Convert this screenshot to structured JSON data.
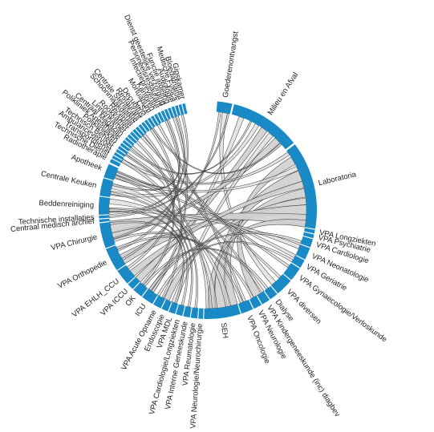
{
  "chart_data": {
    "type": "chord",
    "title": "",
    "colors": {
      "arc": "#1a8ac6",
      "ribbon_fill": "#cfcfcf",
      "ribbon_stroke": "#1a1a1a",
      "label": "#222222"
    },
    "segments": [
      {
        "name": "Goederenontvangst",
        "start": 5,
        "end": 13
      },
      {
        "name": "Milieu en Afval",
        "start": 14,
        "end": 52
      },
      {
        "name": "Laboratoria",
        "start": 53,
        "end": 100
      },
      {
        "name": "VPA Longziekten",
        "start": 100.5,
        "end": 102.5
      },
      {
        "name": "VPA Psychiatrie",
        "start": 103,
        "end": 105
      },
      {
        "name": "VPA Cardiologie",
        "start": 105.5,
        "end": 110
      },
      {
        "name": "VPA Neonatologie",
        "start": 110.5,
        "end": 117
      },
      {
        "name": "VPA Geriatrie",
        "start": 117.5,
        "end": 122
      },
      {
        "name": "VPA Gynaecologie/Verloskunde",
        "start": 122.5,
        "end": 130
      },
      {
        "name": "VPA diversen",
        "start": 130.5,
        "end": 140
      },
      {
        "name": "Dialyse",
        "start": 140.5,
        "end": 145
      },
      {
        "name": "VPA Kindergeneeskunde (inc) diagbev",
        "start": 145.5,
        "end": 150
      },
      {
        "name": "VPA Neurologie",
        "start": 150.5,
        "end": 155
      },
      {
        "name": "VPA Oncologie",
        "start": 155.5,
        "end": 162
      },
      {
        "name": "SEH",
        "start": 162.5,
        "end": 182
      },
      {
        "name": "VPA Neurologie/Neurochirurgie",
        "start": 182.5,
        "end": 185
      },
      {
        "name": "VPA Reumatologie",
        "start": 185.5,
        "end": 189
      },
      {
        "name": "VPA Interne Geneeskunde",
        "start": 189.5,
        "end": 193
      },
      {
        "name": "VPA Cardiologie/Longziekten",
        "start": 193.5,
        "end": 197
      },
      {
        "name": "VPA MDL",
        "start": 197.5,
        "end": 201
      },
      {
        "name": "Endoscopie",
        "start": 201.5,
        "end": 205
      },
      {
        "name": "VPA Acute Opname",
        "start": 205.5,
        "end": 210
      },
      {
        "name": "ICU",
        "start": 210.5,
        "end": 217
      },
      {
        "name": "OK",
        "start": 217.5,
        "end": 223
      },
      {
        "name": "VPA ICCU",
        "start": 223.5,
        "end": 227
      },
      {
        "name": "VPA EHLH_CCU",
        "start": 227.5,
        "end": 236
      },
      {
        "name": "VPA Orthopedie",
        "start": 236.5,
        "end": 249
      },
      {
        "name": "VPA Chirurgie",
        "start": 249.5,
        "end": 263
      },
      {
        "name": "Centraal medisch archief",
        "start": 263.5,
        "end": 265
      },
      {
        "name": "Technische installaties",
        "start": 265.5,
        "end": 267
      },
      {
        "name": "Beddenreiniging",
        "start": 267.5,
        "end": 277
      },
      {
        "name": "Centrale Keuken",
        "start": 277.5,
        "end": 287
      },
      {
        "name": "Apotheek",
        "start": 287.5,
        "end": 295
      },
      {
        "name": "Radiotherapie",
        "start": 296,
        "end": 298
      },
      {
        "name": "Technische Dienst",
        "start": 298.5,
        "end": 300
      },
      {
        "name": "Transportdienst",
        "start": 300.5,
        "end": 302
      },
      {
        "name": "Ambulancevervoer",
        "start": 302.5,
        "end": 304
      },
      {
        "name": "Technisch Beheer",
        "start": 304.5,
        "end": 306
      },
      {
        "name": "Poliklinieken",
        "start": 306.5,
        "end": 308
      },
      {
        "name": "Polikliniek Anesthesie",
        "start": 308.5,
        "end": 310
      },
      {
        "name": "Centraal Magazijn",
        "start": 310.5,
        "end": 312
      },
      {
        "name": "Linnenkamer",
        "start": 312.5,
        "end": 314
      },
      {
        "name": "Rookkamer",
        "start": 314.5,
        "end": 316
      },
      {
        "name": "Receptie",
        "start": 316.5,
        "end": 318
      },
      {
        "name": "Schoonmaakdienst",
        "start": 318.5,
        "end": 320
      },
      {
        "name": "Centrale Sterilisatie",
        "start": 320.5,
        "end": 322
      },
      {
        "name": "Restaurant",
        "start": 322.5,
        "end": 324
      },
      {
        "name": "Decubitus",
        "start": 324.5,
        "end": 326
      },
      {
        "name": "CSA",
        "start": 326.5,
        "end": 328
      },
      {
        "name": "Mortuarium",
        "start": 328.5,
        "end": 330
      },
      {
        "name": "Kantoren",
        "start": 330.5,
        "end": 332
      },
      {
        "name": "Infectiepreventie",
        "start": 332.5,
        "end": 334
      },
      {
        "name": "Personeelsrestaurant",
        "start": 334.5,
        "end": 336
      },
      {
        "name": "Dienst geestelijke verzorging",
        "start": 336.5,
        "end": 338
      },
      {
        "name": "Functie afdeling",
        "start": 338.5,
        "end": 340
      },
      {
        "name": "Audiologie",
        "start": 340.5,
        "end": 342
      },
      {
        "name": "Medische Fysica",
        "start": 342.5,
        "end": 344
      },
      {
        "name": "Bloedafname",
        "start": 344.5,
        "end": 346
      },
      {
        "name": "Gipskamer",
        "start": 346.5,
        "end": 348
      }
    ],
    "flows": [
      {
        "a": 10,
        "b": 138,
        "w": 3
      },
      {
        "a": 20,
        "b": 215,
        "w": 3
      },
      {
        "a": 35,
        "b": 225,
        "w": 4
      },
      {
        "a": 45,
        "b": 255,
        "w": 4
      },
      {
        "a": 40,
        "b": 200,
        "w": 3
      },
      {
        "a": 30,
        "b": 280,
        "w": 2.5
      },
      {
        "a": 60,
        "b": 150,
        "w": 5
      },
      {
        "a": 70,
        "b": 172,
        "w": 7
      },
      {
        "a": 80,
        "b": 165,
        "w": 5
      },
      {
        "a": 85,
        "b": 205,
        "w": 4
      },
      {
        "a": 90,
        "b": 240,
        "w": 6
      },
      {
        "a": 96,
        "b": 260,
        "w": 7
      },
      {
        "a": 75,
        "b": 230,
        "w": 4
      },
      {
        "a": 65,
        "b": 290,
        "w": 2.5
      },
      {
        "a": 55,
        "b": 300,
        "w": 2
      },
      {
        "a": 98,
        "b": 178,
        "w": 4
      },
      {
        "a": 112,
        "b": 270,
        "w": 2.5
      },
      {
        "a": 118,
        "b": 292,
        "w": 2
      },
      {
        "a": 125,
        "b": 305,
        "w": 1.5
      },
      {
        "a": 133,
        "b": 318,
        "w": 1.5
      },
      {
        "a": 146,
        "b": 310,
        "w": 1.5
      },
      {
        "a": 158,
        "b": 330,
        "w": 1.5
      },
      {
        "a": 168,
        "b": 275,
        "w": 3
      },
      {
        "a": 176,
        "b": 284,
        "w": 3
      },
      {
        "a": 180,
        "b": 300,
        "w": 2
      },
      {
        "a": 207,
        "b": 320,
        "w": 1.5
      },
      {
        "a": 214,
        "b": 340,
        "w": 1.5
      },
      {
        "a": 221,
        "b": 314,
        "w": 1.5
      },
      {
        "a": 234,
        "b": 325,
        "w": 1.5
      },
      {
        "a": 246,
        "b": 335,
        "w": 1.5
      },
      {
        "a": 253,
        "b": 345,
        "w": 1.2
      },
      {
        "a": 268,
        "b": 342,
        "w": 1.2
      },
      {
        "a": 285,
        "b": 336,
        "w": 1.2
      },
      {
        "a": 293,
        "b": 304,
        "w": 1
      },
      {
        "a": 7,
        "b": 240,
        "w": 1.2
      },
      {
        "a": 12,
        "b": 266,
        "w": 1
      },
      {
        "a": 26,
        "b": 308,
        "w": 1
      },
      {
        "a": 48,
        "b": 326,
        "w": 1
      },
      {
        "a": 109,
        "b": 216,
        "w": 1.5
      },
      {
        "a": 121,
        "b": 210,
        "w": 1.5
      },
      {
        "a": 143,
        "b": 220,
        "w": 1.5
      },
      {
        "a": 153,
        "b": 247,
        "w": 1.5
      },
      {
        "a": 160,
        "b": 252,
        "w": 1.5
      },
      {
        "a": 187,
        "b": 290,
        "w": 1.2
      },
      {
        "a": 191,
        "b": 280,
        "w": 1.2
      },
      {
        "a": 195,
        "b": 270,
        "w": 1.2
      },
      {
        "a": 199,
        "b": 262,
        "w": 1.2
      }
    ]
  }
}
